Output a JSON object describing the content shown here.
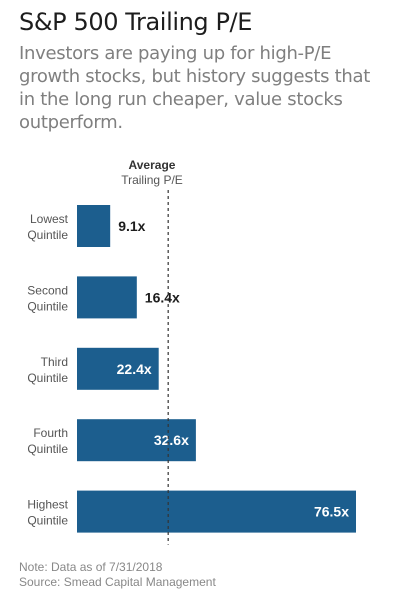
{
  "title": "S&P 500 Trailing P/E",
  "subtitle": "Investors are paying up for high-P/E growth stocks, but history suggests that in the long run cheaper, value stocks outperform.",
  "reference": {
    "label_line1": "Average",
    "label_line2": "Trailing P/E"
  },
  "note": "Note: Data as of 7/31/2018",
  "source": "Source: Smead Capital Management",
  "colors": {
    "bar": "#1c5e8e",
    "label_outside": "#1d1d1d",
    "label_inside": "#ffffff",
    "reference_line": "#333333"
  },
  "chart_data": {
    "type": "bar",
    "orientation": "horizontal",
    "categories": [
      [
        "Lowest",
        "Quintile"
      ],
      [
        "Second",
        "Quintile"
      ],
      [
        "Third",
        "Quintile"
      ],
      [
        "Fourth",
        "Quintile"
      ],
      [
        "Highest",
        "Quintile"
      ]
    ],
    "values": [
      9.1,
      16.4,
      22.4,
      32.6,
      76.5
    ],
    "value_labels": [
      "9.1x",
      "16.4x",
      "22.4x",
      "32.6x",
      "76.5x"
    ],
    "reference_value": 25,
    "xlim": [
      0,
      80
    ],
    "grid": false
  }
}
